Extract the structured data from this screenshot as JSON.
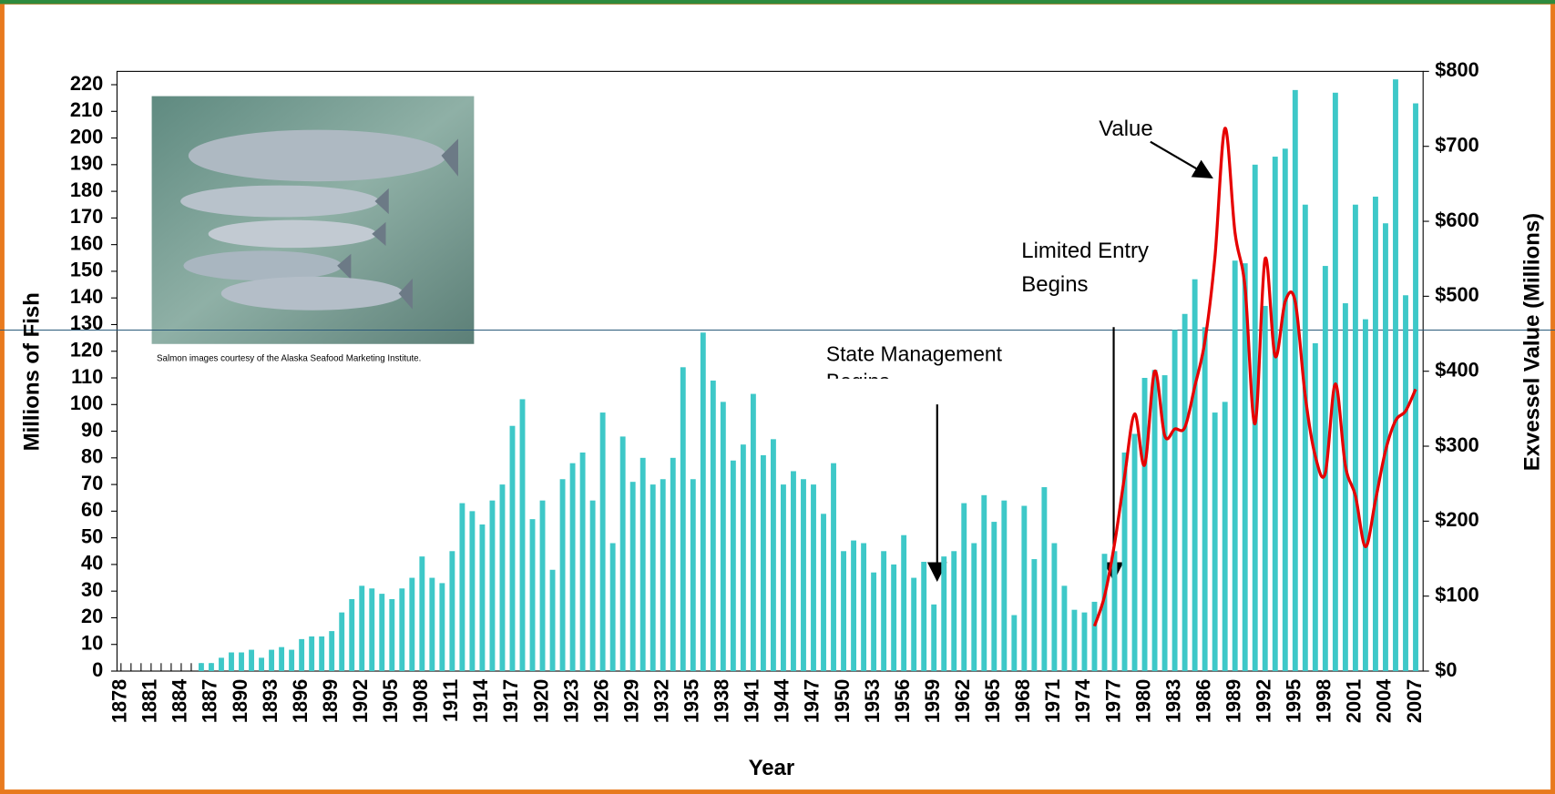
{
  "chart_data": {
    "type": "bar",
    "xlabel": "Year",
    "ylabel": "Millions of Fish",
    "y2label": "Exvessel Value (Millions)",
    "note": "Salmon images courtesy of the Alaska Seafood Marketing Institute.",
    "annotations": [
      {
        "lines": [
          "Value"
        ]
      },
      {
        "lines": [
          "Limited Entry",
          "Begins"
        ]
      },
      {
        "lines": [
          "State Management",
          "Begins"
        ]
      }
    ],
    "categories": [
      "1878",
      null,
      null,
      "1881",
      null,
      null,
      "1884",
      null,
      null,
      "1887",
      null,
      null,
      "1890",
      null,
      null,
      "1893",
      null,
      null,
      "1896",
      null,
      null,
      "1899",
      null,
      null,
      "1902",
      null,
      null,
      "1905",
      null,
      null,
      "1908",
      null,
      null,
      "1911",
      null,
      null,
      "1914",
      null,
      null,
      "1917",
      null,
      null,
      "1920",
      null,
      null,
      "1923",
      null,
      null,
      "1926",
      null,
      null,
      "1929",
      null,
      null,
      "1932",
      null,
      null,
      "1935",
      null,
      null,
      "1938",
      null,
      null,
      "1941",
      null,
      null,
      "1944",
      null,
      null,
      "1947",
      null,
      null,
      "1950",
      null,
      null,
      "1953",
      null,
      null,
      "1956",
      null,
      null,
      "1959",
      null,
      null,
      "1962",
      null,
      null,
      "1965",
      null,
      null,
      "1968",
      null,
      null,
      "1971",
      null,
      null,
      "1974",
      null,
      null,
      "1977",
      null,
      null,
      "1980",
      null,
      null,
      "1983",
      null,
      null,
      "1986",
      null,
      null,
      "1989",
      null,
      null,
      "1992",
      null,
      null,
      "1995",
      null,
      null,
      "1998",
      null,
      null,
      "2001",
      null,
      null,
      "2004",
      null,
      null,
      "2007"
    ],
    "series": [
      {
        "type": "bar",
        "color": "#3ec8c8",
        "values": [
          0,
          0,
          0,
          0,
          0,
          0,
          0,
          0,
          3,
          3,
          5,
          7,
          7,
          8,
          5,
          8,
          9,
          8,
          12,
          13,
          13,
          15,
          22,
          27,
          32,
          31,
          29,
          27,
          31,
          35,
          43,
          35,
          33,
          45,
          63,
          60,
          55,
          64,
          70,
          92,
          102,
          57,
          64,
          38,
          72,
          78,
          82,
          64,
          97,
          48,
          88,
          71,
          80,
          70,
          72,
          80,
          114,
          72,
          127,
          109,
          101,
          79,
          85,
          104,
          81,
          87,
          70,
          75,
          72,
          70,
          59,
          78,
          45,
          49,
          48,
          37,
          45,
          40,
          51,
          35,
          41,
          25,
          43,
          45,
          63,
          48,
          66,
          56,
          64,
          21,
          62,
          42,
          69,
          48,
          32,
          23,
          22,
          26,
          44,
          45,
          82,
          89,
          110,
          113,
          111,
          128,
          134,
          147,
          129,
          97,
          101,
          154,
          153,
          190,
          137,
          193,
          196,
          218,
          175,
          123,
          152,
          217,
          138,
          175,
          132,
          178,
          168,
          222,
          141,
          213
        ]
      },
      {
        "type": "line",
        "axis": "y2",
        "color": "#e60000",
        "values": [
          null,
          null,
          null,
          null,
          null,
          null,
          null,
          null,
          null,
          null,
          null,
          null,
          null,
          null,
          null,
          null,
          null,
          null,
          null,
          null,
          null,
          null,
          null,
          null,
          null,
          null,
          null,
          null,
          null,
          null,
          null,
          null,
          null,
          null,
          null,
          null,
          null,
          null,
          null,
          null,
          null,
          null,
          null,
          null,
          null,
          null,
          null,
          null,
          null,
          null,
          null,
          null,
          null,
          null,
          null,
          null,
          null,
          null,
          null,
          null,
          null,
          null,
          null,
          null,
          null,
          null,
          null,
          null,
          null,
          null,
          null,
          null,
          null,
          null,
          null,
          null,
          null,
          null,
          null,
          null,
          null,
          null,
          null,
          null,
          null,
          null,
          null,
          null,
          null,
          null,
          null,
          null,
          null,
          null,
          null,
          null,
          null,
          60,
          100,
          170,
          260,
          343,
          275,
          400,
          314,
          323,
          325,
          380,
          440,
          552,
          724,
          585,
          512,
          330,
          550,
          420,
          493,
          493,
          367,
          287,
          264,
          383,
          274,
          234,
          166,
          228,
          294,
          334,
          347,
          376
        ]
      }
    ],
    "ylim": [
      0,
      225
    ],
    "yticks": [
      0,
      10,
      20,
      30,
      40,
      50,
      60,
      70,
      80,
      90,
      100,
      110,
      120,
      130,
      140,
      150,
      160,
      170,
      180,
      190,
      200,
      210,
      220
    ],
    "y2lim": [
      0,
      800
    ],
    "y2ticks": [
      {
        "value": 0,
        "label": "$0"
      },
      {
        "value": 100,
        "label": "$100"
      },
      {
        "value": 200,
        "label": "$200"
      },
      {
        "value": 300,
        "label": "$300"
      },
      {
        "value": 400,
        "label": "$400"
      },
      {
        "value": 500,
        "label": "$500"
      },
      {
        "value": 600,
        "label": "$600"
      },
      {
        "value": 700,
        "label": "$700"
      },
      {
        "value": 800,
        "label": "$800"
      }
    ],
    "grid": false
  }
}
